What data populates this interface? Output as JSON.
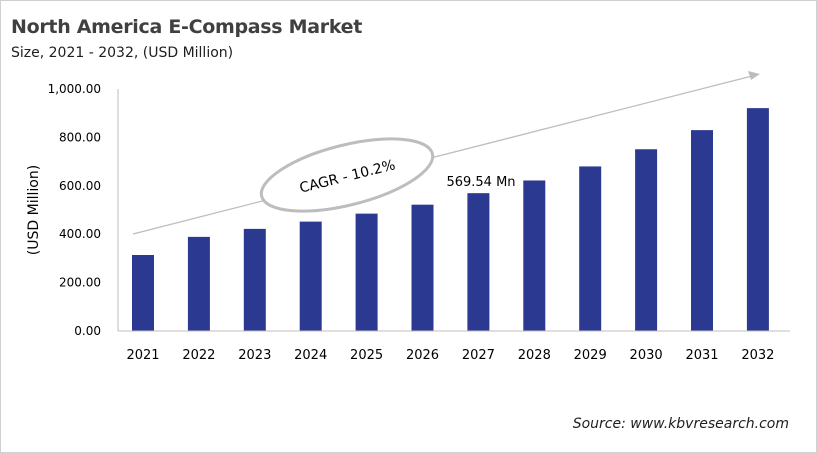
{
  "chart_data": {
    "type": "bar",
    "title": "North America E-Compass  Market",
    "subtitle": "Size, 2021 - 2032, (USD Million)",
    "xlabel": "",
    "ylabel": "(USD Million)",
    "categories": [
      "2021",
      "2022",
      "2023",
      "2024",
      "2025",
      "2026",
      "2027",
      "2028",
      "2029",
      "2030",
      "2031",
      "2032"
    ],
    "values": [
      314,
      389,
      422,
      452,
      485,
      522,
      569.54,
      622,
      680,
      751,
      830,
      921
    ],
    "ylim": [
      0,
      1000
    ],
    "yticks": [
      "0.00",
      "200.00",
      "400.00",
      "600.00",
      "800.00",
      "1,000.00"
    ],
    "grid": false,
    "legend": "none",
    "bar_color": "#2b3990",
    "annotations": {
      "cagr": "CAGR - 10.2%",
      "data_label": "569.54 Mn",
      "data_label_year": "2027"
    },
    "source": "Source: www.kbvresearch.com"
  }
}
